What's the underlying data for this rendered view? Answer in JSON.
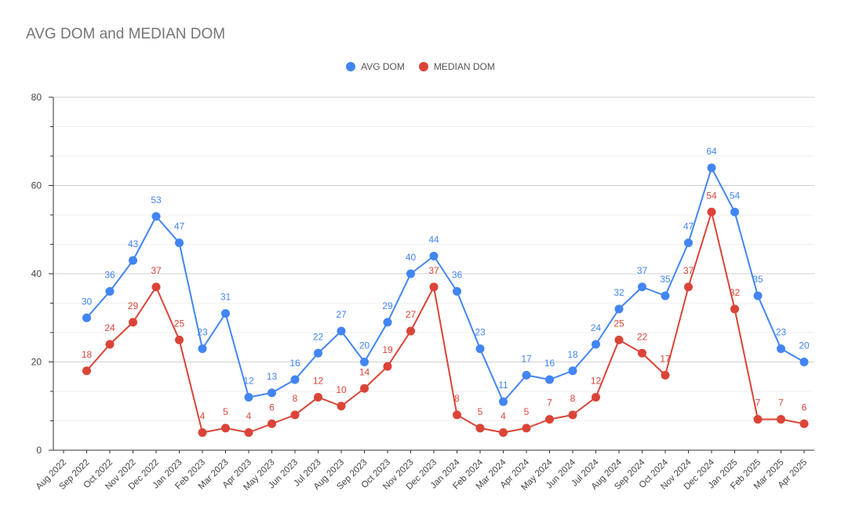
{
  "chart_data": {
    "type": "line",
    "title": "AVG DOM and MEDIAN DOM",
    "xlabel": "",
    "ylabel": "",
    "ylim": [
      0,
      80
    ],
    "yticks": [
      0,
      20,
      40,
      60,
      80
    ],
    "grid": true,
    "legend_position": "top",
    "categories": [
      "Aug 2022",
      "Sep 2022",
      "Oct 2022",
      "Nov 2022",
      "Dec 2022",
      "Jan 2023",
      "Feb 2023",
      "Mar 2023",
      "Apr 2023",
      "May 2023",
      "Jun 2023",
      "Jul 2023",
      "Aug 2023",
      "Sep 2023",
      "Oct 2023",
      "Nov 2023",
      "Dec 2023",
      "Jan 2024",
      "Feb 2024",
      "Mar 2024",
      "Apr 2024",
      "May 2024",
      "Jun 2024",
      "Jul 2024",
      "Aug 2024",
      "Sep 2024",
      "Oct 2024",
      "Nov 2024",
      "Dec 2024",
      "Jan 2025",
      "Feb 2025",
      "Mar 2025",
      "Apr 2025"
    ],
    "series": [
      {
        "name": "AVG DOM",
        "color": "#4285f4",
        "values": [
          null,
          30,
          36,
          43,
          53,
          47,
          23,
          31,
          12,
          13,
          16,
          22,
          27,
          20,
          29,
          40,
          44,
          36,
          23,
          11,
          17,
          16,
          18,
          24,
          32,
          37,
          35,
          47,
          64,
          54,
          35,
          23,
          20
        ]
      },
      {
        "name": "MEDIAN DOM",
        "color": "#db4437",
        "values": [
          null,
          18,
          24,
          29,
          37,
          25,
          4,
          5,
          4,
          6,
          8,
          12,
          10,
          14,
          19,
          27,
          37,
          8,
          5,
          4,
          5,
          7,
          8,
          12,
          25,
          22,
          17,
          37,
          54,
          32,
          7,
          7,
          6
        ]
      }
    ]
  }
}
